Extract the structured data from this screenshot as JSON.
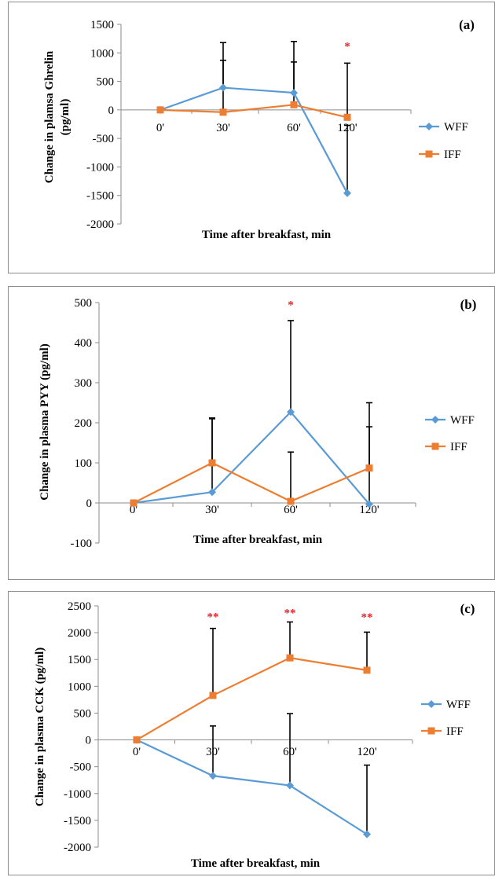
{
  "chart_data": [
    {
      "type": "line",
      "panel_label": "(a)",
      "ylabel": [
        "Change in plamsa Ghrelin",
        "(pg/ml)"
      ],
      "xlabel": "Time after breakfast, min",
      "categories": [
        "0'",
        "30'",
        "60'",
        "120'"
      ],
      "ylim": [
        -2000,
        1500
      ],
      "yticks": [
        1500,
        1000,
        500,
        0,
        -500,
        -1000,
        -1500,
        -2000
      ],
      "grid": false,
      "legend_position": "right",
      "series": [
        {
          "name": "WFF",
          "color": "#5b9bd5",
          "marker": "diamond",
          "values": [
            0,
            390,
            300,
            -1460
          ],
          "error_upper": [
            null,
            1180,
            1200,
            null
          ],
          "error_lower": [
            null,
            null,
            null,
            -270
          ]
        },
        {
          "name": "IFF",
          "color": "#ed7d31",
          "marker": "square",
          "values": [
            0,
            -40,
            90,
            -130
          ],
          "error_upper": [
            null,
            870,
            840,
            820
          ],
          "error_lower": [
            null,
            null,
            null,
            null
          ]
        }
      ],
      "annotations": [
        {
          "text": "*",
          "category_index": 3,
          "y": 1050
        }
      ]
    },
    {
      "type": "line",
      "panel_label": "(b)",
      "ylabel": [
        "Change in plasma PYY (pg/ml)"
      ],
      "xlabel": "Time after breakfast, min",
      "categories": [
        "0'",
        "30'",
        "60'",
        "120'"
      ],
      "ylim": [
        -100,
        500
      ],
      "yticks": [
        500,
        400,
        300,
        200,
        100,
        0,
        -100
      ],
      "grid": false,
      "legend_position": "right",
      "series": [
        {
          "name": "WFF",
          "color": "#5b9bd5",
          "marker": "diamond",
          "values": [
            0,
            27,
            227,
            -3
          ],
          "error_upper": [
            null,
            210,
            455,
            190
          ],
          "error_lower": [
            null,
            null,
            null,
            null
          ]
        },
        {
          "name": "IFF",
          "color": "#ed7d31",
          "marker": "square",
          "values": [
            0,
            100,
            4,
            87
          ],
          "error_upper": [
            null,
            212,
            127,
            250
          ],
          "error_lower": [
            null,
            null,
            null,
            null
          ]
        }
      ],
      "annotations": [
        {
          "text": "*",
          "category_index": 2,
          "y": 485
        }
      ]
    },
    {
      "type": "line",
      "panel_label": "(c)",
      "ylabel": [
        "Change in plasma CCK (pg/ml)"
      ],
      "xlabel": "Time after breakfast, min",
      "categories": [
        "0'",
        "30'",
        "60'",
        "120'"
      ],
      "ylim": [
        -2000,
        2500
      ],
      "yticks": [
        2500,
        2000,
        1500,
        1000,
        500,
        0,
        -500,
        -1000,
        -1500,
        -2000
      ],
      "grid": false,
      "legend_position": "right",
      "series": [
        {
          "name": "WFF",
          "color": "#5b9bd5",
          "marker": "diamond",
          "values": [
            0,
            -670,
            -850,
            -1760
          ],
          "error_upper": [
            null,
            260,
            490,
            null
          ],
          "error_lower": [
            null,
            null,
            null,
            -470
          ]
        },
        {
          "name": "IFF",
          "color": "#ed7d31",
          "marker": "square",
          "values": [
            0,
            830,
            1530,
            1300
          ],
          "error_upper": [
            null,
            2080,
            2200,
            2010
          ],
          "error_lower": [
            null,
            null,
            null,
            null
          ]
        }
      ],
      "annotations": [
        {
          "text": "**",
          "category_index": 1,
          "y": 2230
        },
        {
          "text": "**",
          "category_index": 2,
          "y": 2300
        },
        {
          "text": "**",
          "category_index": 3,
          "y": 2220
        }
      ]
    }
  ]
}
